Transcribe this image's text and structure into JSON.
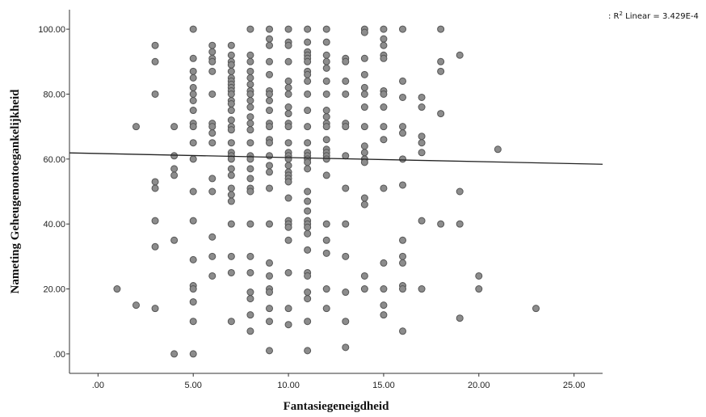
{
  "chart_data": {
    "type": "scatter",
    "xlabel": "Fantasiegeneigdheid",
    "ylabel": "Nameting Geheugenontoegankelijkheid",
    "xlim": [
      -1.5,
      26.5
    ],
    "ylim": [
      -6,
      106
    ],
    "x_ticks": [
      0,
      5,
      10,
      15,
      20,
      25
    ],
    "x_tick_labels": [
      ".00",
      "5.00",
      "10.00",
      "15.00",
      "20.00",
      "25.00"
    ],
    "y_ticks": [
      0,
      20,
      40,
      60,
      80,
      100
    ],
    "y_tick_labels": [
      ".00",
      "20.00",
      "40.00",
      "60.00",
      "80.00",
      "100.00"
    ],
    "legend": "top-right",
    "fit_line": {
      "label_prefix": ": R",
      "label_sup": "2",
      "label_suffix": " Linear = 3.429E-4",
      "x": [
        -1.5,
        26.5
      ],
      "y": [
        61.9,
        58.4
      ]
    },
    "points": [
      [
        1,
        20
      ],
      [
        2,
        70
      ],
      [
        2,
        15
      ],
      [
        3,
        95
      ],
      [
        3,
        90
      ],
      [
        3,
        80
      ],
      [
        3,
        53
      ],
      [
        3,
        51
      ],
      [
        3,
        41
      ],
      [
        3,
        33
      ],
      [
        3,
        14
      ],
      [
        4,
        70
      ],
      [
        4,
        61
      ],
      [
        4,
        57
      ],
      [
        4,
        55
      ],
      [
        4,
        35
      ],
      [
        4,
        0
      ],
      [
        5,
        100
      ],
      [
        5,
        91
      ],
      [
        5,
        87
      ],
      [
        5,
        85
      ],
      [
        5,
        82
      ],
      [
        5,
        80
      ],
      [
        5,
        78
      ],
      [
        5,
        75
      ],
      [
        5,
        71
      ],
      [
        5,
        70
      ],
      [
        5,
        65
      ],
      [
        5,
        60
      ],
      [
        5,
        50
      ],
      [
        5,
        41
      ],
      [
        5,
        29
      ],
      [
        5,
        21
      ],
      [
        5,
        20
      ],
      [
        5,
        16
      ],
      [
        5,
        10
      ],
      [
        5,
        0
      ],
      [
        6,
        95
      ],
      [
        6,
        93
      ],
      [
        6,
        91
      ],
      [
        6,
        90
      ],
      [
        6,
        87
      ],
      [
        6,
        80
      ],
      [
        6,
        71
      ],
      [
        6,
        70
      ],
      [
        6,
        68
      ],
      [
        6,
        65
      ],
      [
        6,
        54
      ],
      [
        6,
        50
      ],
      [
        6,
        36
      ],
      [
        6,
        30
      ],
      [
        6,
        24
      ],
      [
        7,
        95
      ],
      [
        7,
        92
      ],
      [
        7,
        90
      ],
      [
        7,
        89
      ],
      [
        7,
        87
      ],
      [
        7,
        85
      ],
      [
        7,
        84
      ],
      [
        7,
        83
      ],
      [
        7,
        82
      ],
      [
        7,
        81
      ],
      [
        7,
        80
      ],
      [
        7,
        78
      ],
      [
        7,
        77
      ],
      [
        7,
        75
      ],
      [
        7,
        72
      ],
      [
        7,
        70
      ],
      [
        7,
        69
      ],
      [
        7,
        65
      ],
      [
        7,
        62
      ],
      [
        7,
        61
      ],
      [
        7,
        60
      ],
      [
        7,
        57
      ],
      [
        7,
        55
      ],
      [
        7,
        51
      ],
      [
        7,
        49
      ],
      [
        7,
        47
      ],
      [
        7,
        40
      ],
      [
        7,
        30
      ],
      [
        7,
        25
      ],
      [
        7,
        10
      ],
      [
        8,
        100
      ],
      [
        8,
        92
      ],
      [
        8,
        90
      ],
      [
        8,
        87
      ],
      [
        8,
        85
      ],
      [
        8,
        83
      ],
      [
        8,
        81
      ],
      [
        8,
        80
      ],
      [
        8,
        78
      ],
      [
        8,
        76
      ],
      [
        8,
        73
      ],
      [
        8,
        71
      ],
      [
        8,
        69
      ],
      [
        8,
        65
      ],
      [
        8,
        61
      ],
      [
        8,
        60
      ],
      [
        8,
        57
      ],
      [
        8,
        54
      ],
      [
        8,
        51
      ],
      [
        8,
        50
      ],
      [
        8,
        40
      ],
      [
        8,
        30
      ],
      [
        8,
        25
      ],
      [
        8,
        19
      ],
      [
        8,
        17
      ],
      [
        8,
        12
      ],
      [
        8,
        7
      ],
      [
        9,
        100
      ],
      [
        9,
        97
      ],
      [
        9,
        95
      ],
      [
        9,
        90
      ],
      [
        9,
        86
      ],
      [
        9,
        81
      ],
      [
        9,
        80
      ],
      [
        9,
        78
      ],
      [
        9,
        75
      ],
      [
        9,
        71
      ],
      [
        9,
        70
      ],
      [
        9,
        66
      ],
      [
        9,
        65
      ],
      [
        9,
        61
      ],
      [
        9,
        58
      ],
      [
        9,
        56
      ],
      [
        9,
        51
      ],
      [
        9,
        40
      ],
      [
        9,
        28
      ],
      [
        9,
        24
      ],
      [
        9,
        20
      ],
      [
        9,
        19
      ],
      [
        9,
        14
      ],
      [
        9,
        10
      ],
      [
        9,
        1
      ],
      [
        10,
        100
      ],
      [
        10,
        96
      ],
      [
        10,
        95
      ],
      [
        10,
        90
      ],
      [
        10,
        84
      ],
      [
        10,
        82
      ],
      [
        10,
        80
      ],
      [
        10,
        76
      ],
      [
        10,
        74
      ],
      [
        10,
        71
      ],
      [
        10,
        70
      ],
      [
        10,
        65
      ],
      [
        10,
        62
      ],
      [
        10,
        61
      ],
      [
        10,
        60
      ],
      [
        10,
        58
      ],
      [
        10,
        56
      ],
      [
        10,
        55
      ],
      [
        10,
        54
      ],
      [
        10,
        53
      ],
      [
        10,
        48
      ],
      [
        10,
        41
      ],
      [
        10,
        40
      ],
      [
        10,
        39
      ],
      [
        10,
        35
      ],
      [
        10,
        25
      ],
      [
        10,
        14
      ],
      [
        10,
        9
      ],
      [
        11,
        100
      ],
      [
        11,
        96
      ],
      [
        11,
        93
      ],
      [
        11,
        92
      ],
      [
        11,
        91
      ],
      [
        11,
        90
      ],
      [
        11,
        87
      ],
      [
        11,
        86
      ],
      [
        11,
        84
      ],
      [
        11,
        80
      ],
      [
        11,
        75
      ],
      [
        11,
        70
      ],
      [
        11,
        65
      ],
      [
        11,
        62
      ],
      [
        11,
        61
      ],
      [
        11,
        60
      ],
      [
        11,
        59
      ],
      [
        11,
        57
      ],
      [
        11,
        50
      ],
      [
        11,
        47
      ],
      [
        11,
        44
      ],
      [
        11,
        41
      ],
      [
        11,
        40
      ],
      [
        11,
        39
      ],
      [
        11,
        37
      ],
      [
        11,
        32
      ],
      [
        11,
        25
      ],
      [
        11,
        24
      ],
      [
        11,
        19
      ],
      [
        11,
        17
      ],
      [
        11,
        10
      ],
      [
        11,
        1
      ],
      [
        12,
        100
      ],
      [
        12,
        96
      ],
      [
        12,
        92
      ],
      [
        12,
        90
      ],
      [
        12,
        88
      ],
      [
        12,
        84
      ],
      [
        12,
        80
      ],
      [
        12,
        75
      ],
      [
        12,
        73
      ],
      [
        12,
        71
      ],
      [
        12,
        70
      ],
      [
        12,
        66
      ],
      [
        12,
        63
      ],
      [
        12,
        62
      ],
      [
        12,
        61
      ],
      [
        12,
        60
      ],
      [
        12,
        55
      ],
      [
        12,
        40
      ],
      [
        12,
        35
      ],
      [
        12,
        31
      ],
      [
        12,
        20
      ],
      [
        12,
        14
      ],
      [
        13,
        91
      ],
      [
        13,
        90
      ],
      [
        13,
        84
      ],
      [
        13,
        80
      ],
      [
        13,
        71
      ],
      [
        13,
        70
      ],
      [
        13,
        61
      ],
      [
        13,
        51
      ],
      [
        13,
        40
      ],
      [
        13,
        30
      ],
      [
        13,
        19
      ],
      [
        13,
        10
      ],
      [
        13,
        2
      ],
      [
        14,
        100
      ],
      [
        14,
        99
      ],
      [
        14,
        91
      ],
      [
        14,
        86
      ],
      [
        14,
        82
      ],
      [
        14,
        80
      ],
      [
        14,
        76
      ],
      [
        14,
        70
      ],
      [
        14,
        64
      ],
      [
        14,
        62
      ],
      [
        14,
        60
      ],
      [
        14,
        59
      ],
      [
        14,
        48
      ],
      [
        14,
        46
      ],
      [
        14,
        24
      ],
      [
        14,
        20
      ],
      [
        15,
        100
      ],
      [
        15,
        97
      ],
      [
        15,
        95
      ],
      [
        15,
        92
      ],
      [
        15,
        91
      ],
      [
        15,
        81
      ],
      [
        15,
        80
      ],
      [
        15,
        76
      ],
      [
        15,
        70
      ],
      [
        15,
        66
      ],
      [
        15,
        51
      ],
      [
        15,
        28
      ],
      [
        15,
        20
      ],
      [
        15,
        15
      ],
      [
        15,
        12
      ],
      [
        16,
        100
      ],
      [
        16,
        84
      ],
      [
        16,
        79
      ],
      [
        16,
        70
      ],
      [
        16,
        68
      ],
      [
        16,
        60
      ],
      [
        16,
        52
      ],
      [
        16,
        35
      ],
      [
        16,
        30
      ],
      [
        16,
        28
      ],
      [
        16,
        21
      ],
      [
        16,
        20
      ],
      [
        16,
        7
      ],
      [
        17,
        79
      ],
      [
        17,
        76
      ],
      [
        17,
        67
      ],
      [
        17,
        65
      ],
      [
        17,
        62
      ],
      [
        17,
        41
      ],
      [
        17,
        20
      ],
      [
        18,
        100
      ],
      [
        18,
        90
      ],
      [
        18,
        87
      ],
      [
        18,
        74
      ],
      [
        18,
        40
      ],
      [
        19,
        92
      ],
      [
        19,
        50
      ],
      [
        19,
        40
      ],
      [
        19,
        11
      ],
      [
        20,
        24
      ],
      [
        20,
        20
      ],
      [
        21,
        63
      ],
      [
        23,
        14
      ]
    ]
  }
}
